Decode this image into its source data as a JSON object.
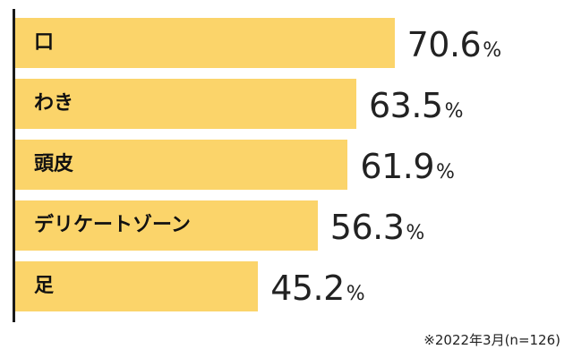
{
  "chart_data": {
    "type": "bar",
    "orientation": "horizontal",
    "categories": [
      "口",
      "わき",
      "頭皮",
      "デリケートゾーン",
      "足"
    ],
    "values": [
      70.6,
      63.5,
      61.9,
      56.3,
      45.2
    ],
    "unit": "%",
    "xlim": [
      0,
      80
    ],
    "grid": false,
    "bar_color": "#fbd46a",
    "note": "※2022年3月(n=126)"
  }
}
